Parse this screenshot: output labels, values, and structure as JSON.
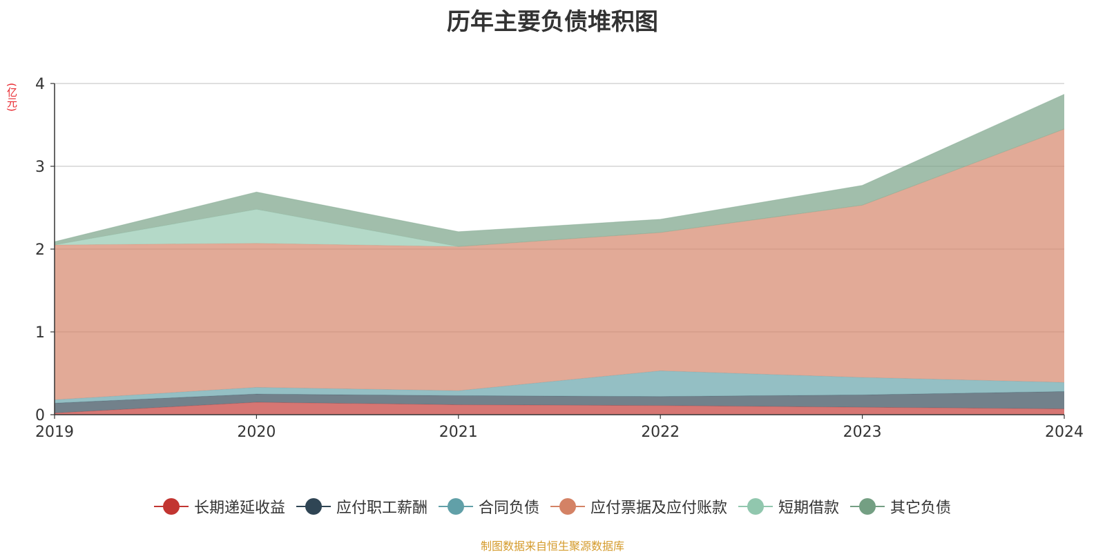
{
  "title": "历年主要负债堆积图",
  "unit": "(亿元)",
  "source": "制图数据来自恒生聚源数据库",
  "chart_data": {
    "type": "area",
    "stacked": true,
    "title": "历年主要负债堆积图",
    "ylabel": "(亿元)",
    "xlabel": "",
    "categories": [
      "2019",
      "2020",
      "2021",
      "2022",
      "2023",
      "2024"
    ],
    "ylim": [
      0,
      4
    ],
    "yticks": [
      0,
      1,
      2,
      3,
      4
    ],
    "grid": true,
    "legend_position": "bottom",
    "series": [
      {
        "name": "长期递延收益",
        "color": "#c23531",
        "values": [
          0.02,
          0.15,
          0.12,
          0.11,
          0.09,
          0.07
        ]
      },
      {
        "name": "应付职工薪酬",
        "color": "#2f4554",
        "values": [
          0.12,
          0.1,
          0.11,
          0.11,
          0.15,
          0.21
        ]
      },
      {
        "name": "合同负债",
        "color": "#61a0a8",
        "values": [
          0.04,
          0.08,
          0.06,
          0.31,
          0.21,
          0.11
        ]
      },
      {
        "name": "应付票据及应付账款",
        "color": "#d48265",
        "values": [
          1.87,
          1.74,
          1.74,
          1.67,
          2.08,
          3.06
        ]
      },
      {
        "name": "短期借款",
        "color": "#91c7ae",
        "values": [
          0.0,
          0.41,
          0.0,
          0.0,
          0.0,
          0.0
        ]
      },
      {
        "name": "其它负债",
        "color": "#749f83",
        "values": [
          0.04,
          0.21,
          0.18,
          0.16,
          0.24,
          0.42
        ]
      }
    ]
  }
}
